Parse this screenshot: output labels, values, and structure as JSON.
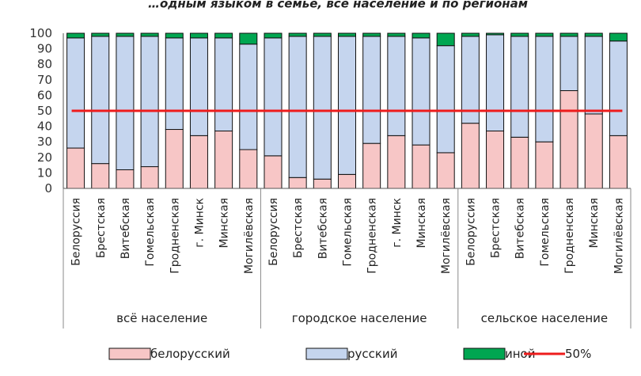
{
  "chart_data": {
    "type": "bar",
    "stacked": true,
    "title": "…одным языком в семье, все население и по регионам",
    "ylim": [
      0,
      100
    ],
    "y_ticks": [
      0,
      10,
      20,
      30,
      40,
      50,
      60,
      70,
      80,
      90,
      100
    ],
    "grid": false,
    "legend_position": "bottom",
    "groups": [
      {
        "label": "всё население",
        "categories": [
          "Белоруссия",
          "Брестская",
          "Витебская",
          "Гомельская",
          "Гродненская",
          "г. Минск",
          "Минская",
          "Могилёвская"
        ]
      },
      {
        "label": "городское население",
        "categories": [
          "Белоруссия",
          "Брестская",
          "Витебская",
          "Гомельская",
          "Гродненская",
          "г. Минск",
          "Минская",
          "Могилёвская"
        ]
      },
      {
        "label": "сельское население",
        "categories": [
          "Белоруссия",
          "Брестская",
          "Витебская",
          "Гомельская",
          "Гродненская",
          "Минская",
          "Могилёвская"
        ]
      }
    ],
    "series": [
      {
        "name": "белорусский",
        "color": "#f7c6c6",
        "values": [
          26,
          16,
          12,
          14,
          38,
          34,
          37,
          25,
          21,
          7,
          6,
          9,
          29,
          34,
          28,
          23,
          42,
          37,
          33,
          30,
          63,
          48,
          34
        ]
      },
      {
        "name": "русский",
        "color": "#c5d5ee",
        "values": [
          71,
          82,
          86,
          84,
          59,
          63,
          60,
          68,
          76,
          91,
          92,
          89,
          69,
          64,
          69,
          69,
          56,
          62,
          65,
          68,
          35,
          50,
          61
        ]
      },
      {
        "name": "иной",
        "color": "#00a651",
        "values": [
          3,
          2,
          2,
          2,
          3,
          3,
          3,
          7,
          3,
          2,
          2,
          2,
          2,
          2,
          3,
          8,
          2,
          1,
          2,
          2,
          2,
          2,
          5
        ]
      }
    ],
    "reference_line": {
      "name": "50%",
      "value": 50,
      "color": "#ee1c1c"
    }
  }
}
